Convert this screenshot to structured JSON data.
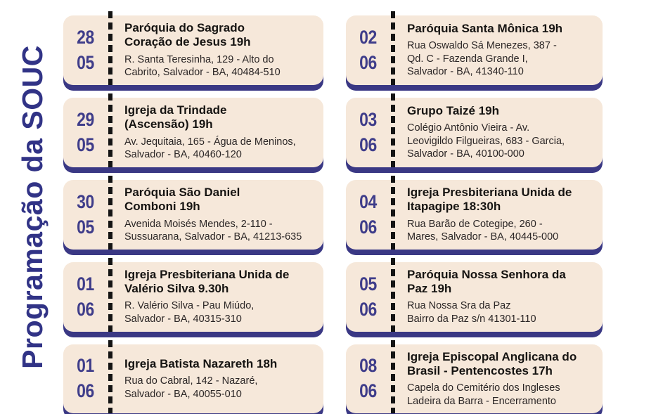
{
  "page": {
    "title": "Programação da SOUC",
    "colors": {
      "background": "#ffffff",
      "card_background": "#f6e8da",
      "card_bottom_bar": "#3a3884",
      "date_text": "#3f3d8a",
      "sidebar_title": "#313386",
      "event_title": "#161412",
      "address_text": "#2b2626",
      "dash": "#141414"
    }
  },
  "columns": [
    {
      "cards": [
        {
          "day": "28",
          "month": "05",
          "title": "Paróquia  do Sagrado\nCoração de Jesus 19h",
          "address": "R. Santa Teresinha, 129 - Alto do\nCabrito, Salvador - BA, 40484-510"
        },
        {
          "day": "29",
          "month": "05",
          "title": "Igreja da Trindade\n(Ascensão) 19h",
          "address": "Av. Jequitaia, 165 - Água de Meninos,\nSalvador - BA, 40460-120"
        },
        {
          "day": "30",
          "month": "05",
          "title": "Paróquia  São Daniel\nComboni 19h",
          "address": "Avenida Moisés Mendes, 2-110 -\nSussuarana, Salvador - BA, 41213-635"
        },
        {
          "day": "01",
          "month": "06",
          "title": "Igreja Presbiteriana Unida de\nValério Silva  9.30h",
          "address": "R. Valério Silva - Pau Miúdo,\nSalvador - BA, 40315-310"
        },
        {
          "day": "01",
          "month": "06",
          "title": "Igreja Batista Nazareth  18h",
          "address": "Rua do Cabral, 142 - Nazaré,\nSalvador - BA, 40055-010"
        }
      ]
    },
    {
      "cards": [
        {
          "day": "02",
          "month": "06",
          "title": "Paróquia Santa Mônica 19h",
          "address": "Rua Oswaldo Sá Menezes, 387 -\nQd. C - Fazenda Grande I,\nSalvador - BA, 41340-110"
        },
        {
          "day": "03",
          "month": "06",
          "title": "Grupo Taizé  19h",
          "address": "Colégio  Antônio Vieira -  Av.\nLeovigildo Filgueiras, 683 - Garcia,\nSalvador - BA, 40100-000"
        },
        {
          "day": "04",
          "month": "06",
          "title": "Igreja Presbiteriana Unida de\nItapagipe  18:30h",
          "address": "Rua Barão de Cotegipe, 260 -\nMares, Salvador - BA, 40445-000"
        },
        {
          "day": "05",
          "month": "06",
          "title": "Paróquia  Nossa Senhora da\nPaz 19h",
          "address": "Rua Nossa Sra da Paz\nBairro da Paz  s/n 41301-110"
        },
        {
          "day": "08",
          "month": "06",
          "title": "Igreja Episcopal Anglicana do\nBrasil  - Pentencostes 17h",
          "address": "Capela do Cemitério dos Ingleses\nLadeira da Barra - Encerramento"
        }
      ]
    }
  ]
}
